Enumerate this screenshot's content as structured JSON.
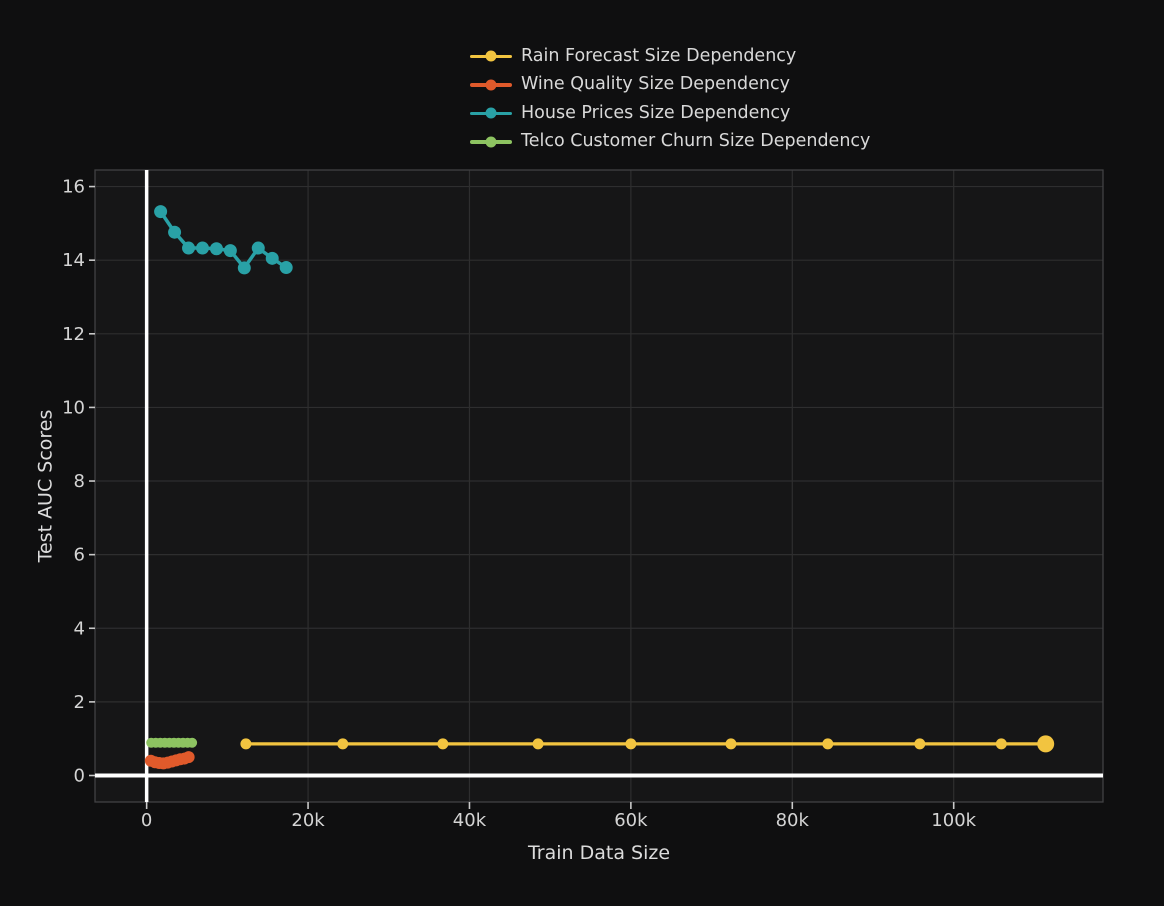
{
  "chart": {
    "background": "#0f0f10",
    "plot_background": "#161617",
    "grid_color": "#2e2e2f",
    "border_color": "#414143",
    "tick_color": "#c9c9c9",
    "tick_label_color": "#d4d4d4",
    "title_color": "#dcdcdc",
    "zero_line_color": "#ffffff"
  },
  "chart_data": {
    "type": "line",
    "title": "",
    "xlabel": "Train Data Size",
    "ylabel": "Test AUC Scores",
    "grid": true,
    "legend_position": "top-center",
    "x_axis": {
      "range": [
        -6400,
        118500
      ],
      "ticks": [
        0,
        20000,
        40000,
        60000,
        80000,
        100000
      ],
      "tick_labels": [
        "0",
        "20k",
        "40k",
        "60k",
        "80k",
        "100k"
      ]
    },
    "y_axis": {
      "range": [
        -0.72,
        16.45
      ],
      "ticks": [
        0,
        2,
        4,
        6,
        8,
        10,
        12,
        14,
        16
      ],
      "tick_labels": [
        "0",
        "2",
        "4",
        "6",
        "8",
        "10",
        "12",
        "14",
        "16"
      ]
    },
    "series": [
      {
        "key": "rain-forecast",
        "name": "Rain Forecast Size Dependency",
        "color": "#f2c440",
        "x": [
          12300,
          24300,
          36700,
          48500,
          60000,
          72400,
          84400,
          95800,
          105900,
          111400
        ],
        "y": [
          0.86,
          0.86,
          0.86,
          0.86,
          0.86,
          0.86,
          0.86,
          0.86,
          0.86,
          0.86
        ]
      },
      {
        "key": "wine-quality",
        "name": "Wine Quality Size Dependency",
        "color": "#e05a2b",
        "x": [
          520,
          1040,
          1560,
          2080,
          2600,
          3120,
          3640,
          4160,
          4680,
          5200
        ],
        "y": [
          0.4,
          0.36,
          0.34,
          0.33,
          0.35,
          0.38,
          0.41,
          0.44,
          0.46,
          0.5
        ]
      },
      {
        "key": "house-prices",
        "name": "House Prices Size Dependency",
        "color": "#29a1a6",
        "x": [
          1730,
          3460,
          5190,
          6920,
          8650,
          10370,
          12100,
          13830,
          15560,
          17290
        ],
        "y": [
          15.32,
          14.76,
          14.33,
          14.33,
          14.31,
          14.26,
          13.79,
          14.33,
          14.05,
          13.8
        ]
      },
      {
        "key": "telco-customer-churn",
        "name": "Telco Customer Churn Size Dependency",
        "color": "#8dc361",
        "x": [
          563,
          1127,
          1690,
          2254,
          2817,
          3380,
          3944,
          4507,
          5071,
          5634
        ],
        "y": [
          0.89,
          0.89,
          0.89,
          0.89,
          0.89,
          0.89,
          0.89,
          0.89,
          0.89,
          0.89
        ]
      }
    ]
  }
}
